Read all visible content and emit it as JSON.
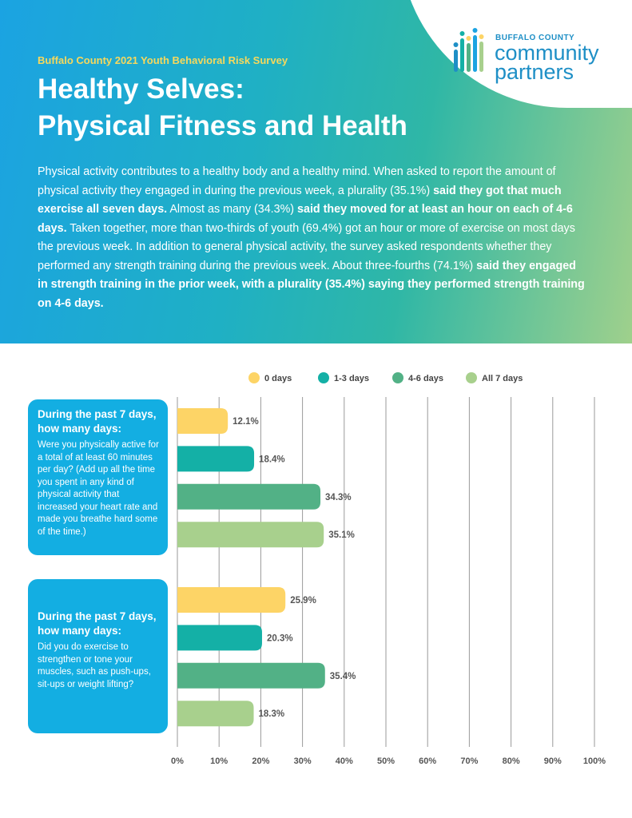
{
  "header": {
    "subtitle": "Buffalo County 2021 Youth Behavioral Risk Survey",
    "title_lines": [
      "Healthy Selves:",
      "Physical Fitness and Health"
    ],
    "logo_lines": [
      "BUFFALO COUNTY",
      "community",
      "partners"
    ]
  },
  "intro": [
    {
      "text": "Physical activity contributes to a healthy body and a healthy mind. When asked to report the amount of physical activity they engaged in during the previous week, a plurality (35.1%) ",
      "bold": false
    },
    {
      "text": "said they got that much exercise all seven days.",
      "bold": true
    },
    {
      "text": " Almost as many (34.3%) ",
      "bold": false
    },
    {
      "text": "said they moved for at least an hour on each of 4-6 days.",
      "bold": true
    },
    {
      "text": " Taken together, more than two-thirds of youth (69.4%) got an hour or more of exercise on most days the previous week. In addition to general physical activity, the survey asked respondents whether they performed any strength training during the previous week. About three-fourths (74.1%) ",
      "bold": false
    },
    {
      "text": "said they engaged in strength training in the prior week, with a plurality (35.4%) saying they performed strength training on 4-6 days.",
      "bold": true
    }
  ],
  "chart_data": {
    "type": "bar",
    "orientation": "horizontal",
    "category_headings": [
      "During the past 7 days, how many days:",
      "During the past 7 days, how many days:"
    ],
    "categories": [
      "Were you physically active for a total of at least 60 minutes per day? (Add up all the time you spent in any kind of physical activity that increased your heart rate and made you breathe hard some of the time.)",
      "Did you do exercise to strengthen or tone your muscles, such as push-ups, sit-ups or weight lifting?"
    ],
    "series": [
      {
        "name": "0 days",
        "color": "#fdd466",
        "values": [
          12.1,
          25.9
        ],
        "value_labels": [
          "12.1%",
          "25.9%"
        ]
      },
      {
        "name": "1-3 days",
        "color": "#14b0a6",
        "values": [
          18.4,
          20.3
        ],
        "value_labels": [
          "18.4%",
          "20.3%"
        ]
      },
      {
        "name": "4-6 days",
        "color": "#52b186",
        "values": [
          34.3,
          35.4
        ],
        "value_labels": [
          "34.3%",
          "35.4%"
        ]
      },
      {
        "name": "All 7 days",
        "color": "#a8d08d",
        "values": [
          35.1,
          18.3
        ],
        "value_labels": [
          "35.1%",
          "18.3%"
        ]
      }
    ],
    "xlim": [
      0,
      100
    ],
    "xticks": [
      {
        "value": 0,
        "label": "0%"
      },
      {
        "value": 10,
        "label": "10%"
      },
      {
        "value": 20,
        "label": "20%"
      },
      {
        "value": 30,
        "label": "30%"
      },
      {
        "value": 40,
        "label": "40%"
      },
      {
        "value": 50,
        "label": "50%"
      },
      {
        "value": 60,
        "label": "60%"
      },
      {
        "value": 70,
        "label": "70%"
      },
      {
        "value": 80,
        "label": "80%"
      },
      {
        "value": 90,
        "label": "90%"
      },
      {
        "value": 100,
        "label": "100%"
      }
    ],
    "grid": true,
    "legend": "top"
  }
}
